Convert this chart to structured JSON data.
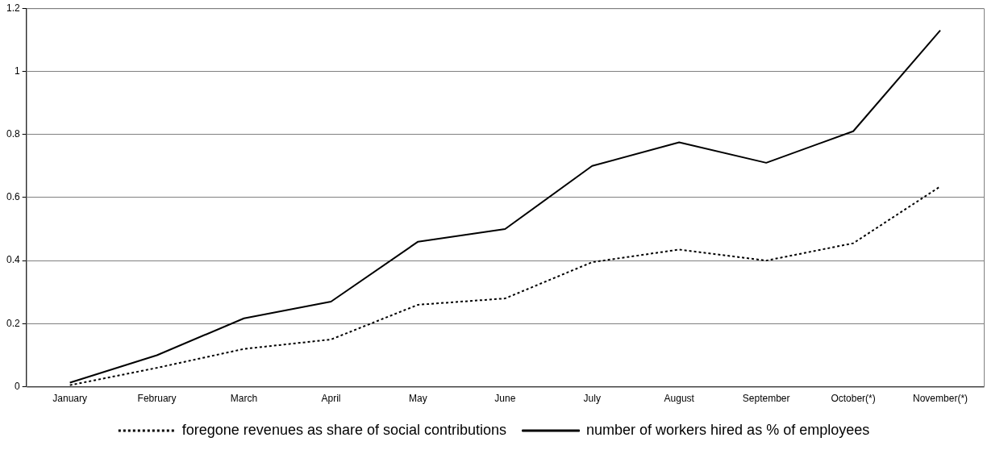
{
  "chart_data": {
    "type": "line",
    "categories": [
      "January",
      "February",
      "March",
      "April",
      "May",
      "June",
      "July",
      "August",
      "September",
      "October(*)",
      "November(*)"
    ],
    "series": [
      {
        "name": "foregone revenues as share of social contributions",
        "color": "#000000",
        "line_style": "dotted",
        "values": [
          0.005,
          0.06,
          0.12,
          0.15,
          0.26,
          0.28,
          0.395,
          0.435,
          0.4,
          0.455,
          0.635
        ]
      },
      {
        "name": "number of workers hired as % of employees",
        "color": "#000000",
        "line_style": "solid",
        "values": [
          0.013,
          0.1,
          0.217,
          0.27,
          0.46,
          0.5,
          0.7,
          0.775,
          0.71,
          0.81,
          1.13
        ]
      }
    ],
    "ylim": [
      0,
      1.2
    ],
    "yticks": [
      0,
      0.2,
      0.4,
      0.6,
      0.8,
      1,
      1.2
    ],
    "grid": "y",
    "legend": "bottom",
    "marker": "none"
  }
}
